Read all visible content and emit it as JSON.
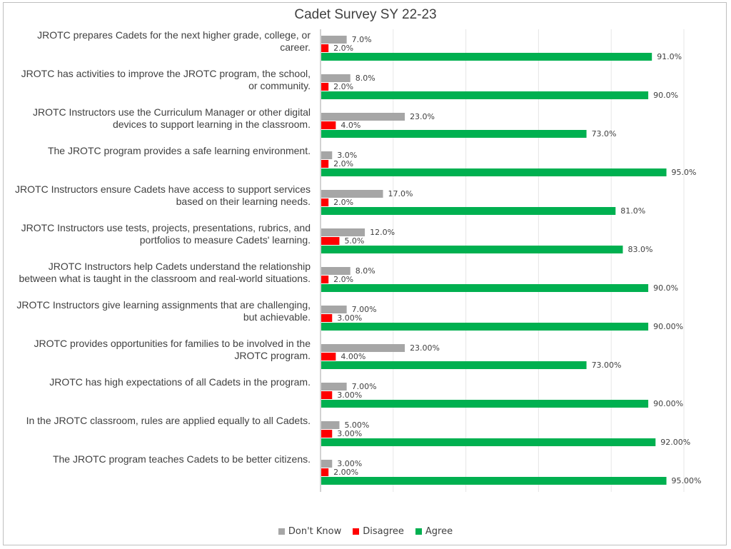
{
  "chart_data": {
    "type": "bar",
    "orientation": "horizontal",
    "title": "Cadet Survey SY 22-23",
    "xlabel": "",
    "ylabel": "",
    "xlim": [
      0,
      100
    ],
    "grid": true,
    "legend_position": "bottom",
    "categories": [
      "JROTC prepares Cadets for the next higher grade, college, or career.",
      "JROTC has activities to improve the JROTC program, the school, or community.",
      "JROTC Instructors use the Curriculum Manager or other digital devices to support learning in the classroom.",
      "The JROTC program provides a safe learning environment.",
      "JROTC Instructors ensure Cadets have access to support services based on their learning needs.",
      "JROTC Instructors use tests, projects, presentations, rubrics, and portfolios to measure Cadets' learning.",
      "JROTC Instructors help Cadets understand the relationship between what is taught in the classroom and real-world situations.",
      "JROTC Instructors give learning assignments that are challenging, but achievable.",
      "JROTC provides opportunities for families to be involved in the JROTC program.",
      "JROTC has high expectations of all Cadets in the program.",
      "In the JROTC classroom, rules are applied equally to all Cadets.",
      "The JROTC program teaches Cadets to be better citizens."
    ],
    "series": [
      {
        "name": "Don't Know",
        "color": "#a6a6a6",
        "values": [
          7,
          8,
          23,
          3,
          17,
          12,
          8,
          7,
          23,
          7,
          5,
          3
        ],
        "labels": [
          "7.0%",
          "8.0%",
          "23.0%",
          "3.0%",
          "17.0%",
          "12.0%",
          "8.0%",
          "7.00%",
          "23.00%",
          "7.00%",
          "5.00%",
          "3.00%"
        ]
      },
      {
        "name": "Disagree",
        "color": "#ff0000",
        "values": [
          2,
          2,
          4,
          2,
          2,
          5,
          2,
          3,
          4,
          3,
          3,
          2
        ],
        "labels": [
          "2.0%",
          "2.0%",
          "4.0%",
          "2.0%",
          "2.0%",
          "5.0%",
          "2.0%",
          "3.00%",
          "4.00%",
          "3.00%",
          "3.00%",
          "2.00%"
        ]
      },
      {
        "name": "Agree",
        "color": "#00b050",
        "values": [
          91,
          90,
          73,
          95,
          81,
          83,
          90,
          90,
          73,
          90,
          92,
          95
        ],
        "labels": [
          "91.0%",
          "90.0%",
          "73.0%",
          "95.0%",
          "81.0%",
          "83.0%",
          "90.0%",
          "90.00%",
          "73.00%",
          "90.00%",
          "92.00%",
          "95.00%"
        ]
      }
    ]
  }
}
